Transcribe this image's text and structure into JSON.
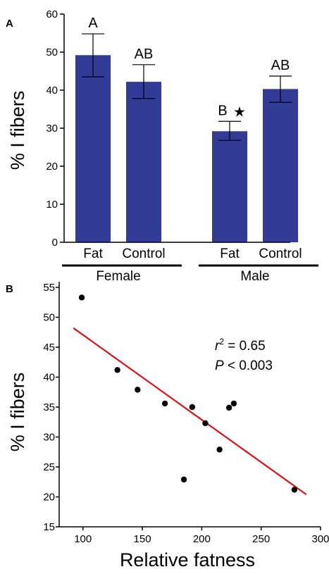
{
  "panels": {
    "a": "A",
    "b": "B"
  },
  "colors": {
    "bar": "#323c96",
    "fit_line": "#dd1111",
    "points": "#000000",
    "axis": "#000000"
  },
  "chart_data": [
    {
      "type": "bar",
      "panel": "A",
      "title": "",
      "xlabel": "",
      "ylabel": "% I fibers",
      "ylim": [
        0,
        60
      ],
      "yticks": [
        0,
        10,
        20,
        30,
        40,
        50,
        60
      ],
      "categories": [
        "Fat",
        "Control",
        "Fat",
        "Control"
      ],
      "groups": [
        {
          "label": "Female",
          "categories": [
            "Fat",
            "Control"
          ]
        },
        {
          "label": "Male",
          "categories": [
            "Fat",
            "Control"
          ]
        }
      ],
      "values": [
        49.2,
        42.2,
        29.2,
        40.3
      ],
      "error_upper": [
        54.8,
        46.7,
        31.8,
        43.7
      ],
      "error_lower": [
        43.5,
        37.8,
        26.8,
        36.8
      ],
      "significance_labels": [
        "A",
        "AB",
        "B",
        "AB"
      ],
      "markers": [
        "",
        "",
        "★",
        ""
      ],
      "grid": false,
      "legend": "none"
    },
    {
      "type": "scatter",
      "panel": "B",
      "title": "",
      "xlabel": "Relative fatness",
      "ylabel": "% I fibers",
      "xlim": [
        80,
        300
      ],
      "ylim": [
        15,
        55
      ],
      "xticks": [
        100,
        150,
        200,
        250,
        300
      ],
      "yticks": [
        15,
        20,
        25,
        30,
        35,
        40,
        45,
        50,
        55
      ],
      "points": [
        {
          "x": 99,
          "y": 53.3
        },
        {
          "x": 129,
          "y": 41.2
        },
        {
          "x": 146,
          "y": 37.9
        },
        {
          "x": 169,
          "y": 35.6
        },
        {
          "x": 185,
          "y": 22.9
        },
        {
          "x": 192,
          "y": 35.0
        },
        {
          "x": 203,
          "y": 32.3
        },
        {
          "x": 215,
          "y": 27.9
        },
        {
          "x": 223,
          "y": 34.9
        },
        {
          "x": 227,
          "y": 35.6
        },
        {
          "x": 278,
          "y": 21.2
        }
      ],
      "fit_line": {
        "x": [
          92,
          288
        ],
        "y": [
          48.2,
          20.4
        ]
      },
      "annotations": {
        "r2_symbol": "r",
        "r2_power": "2",
        "r2_value": " = 0.65",
        "p_symbol": "P",
        "p_value": " < 0.003"
      },
      "grid": false,
      "legend": "none"
    }
  ]
}
